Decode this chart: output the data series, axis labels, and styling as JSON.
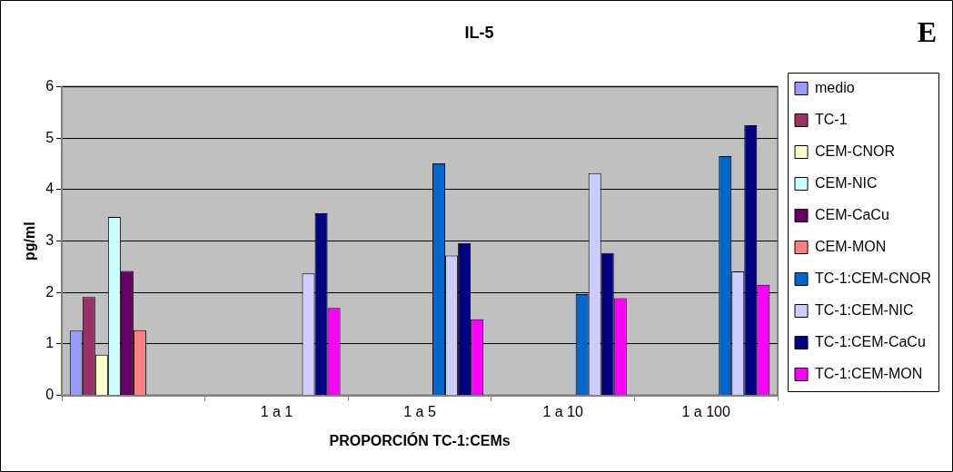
{
  "chart_data": {
    "type": "bar",
    "title": "IL-5",
    "xlabel": "PROPORCIÓN TC-1:CEMs",
    "ylabel": "pg/ml",
    "annotations": [
      "E"
    ],
    "categories": [
      null,
      "1 a 1",
      "1 a 5",
      "1 a 10",
      "1 a 100"
    ],
    "series": [
      {
        "name": "medio",
        "color": "#9999ff",
        "values": [
          1.26,
          null,
          null,
          null,
          null
        ]
      },
      {
        "name": "TC-1",
        "color": "#993366",
        "values": [
          1.91,
          null,
          null,
          null,
          null
        ]
      },
      {
        "name": "CEM-CNOR",
        "color": "#ffffcc",
        "values": [
          0.79,
          null,
          null,
          null,
          null
        ]
      },
      {
        "name": "CEM-NIC",
        "color": "#ccffff",
        "values": [
          3.47,
          null,
          null,
          null,
          null
        ]
      },
      {
        "name": "CEM-CaCu",
        "color": "#660066",
        "values": [
          2.42,
          null,
          null,
          null,
          null
        ]
      },
      {
        "name": "CEM-MON",
        "color": "#ff8080",
        "values": [
          1.27,
          null,
          null,
          null,
          null
        ]
      },
      {
        "name": "TC-1:CEM-CNOR",
        "color": "#0066cc",
        "values": [
          null,
          null,
          4.51,
          1.97,
          4.65
        ]
      },
      {
        "name": "TC-1:CEM-NIC",
        "color": "#ccccff",
        "values": [
          null,
          2.37,
          2.72,
          4.32,
          2.41
        ]
      },
      {
        "name": "TC-1:CEM-CaCu",
        "color": "#000080",
        "values": [
          null,
          3.54,
          2.96,
          2.77,
          5.25
        ]
      },
      {
        "name": "TC-1:CEM-MON",
        "color": "#ff00ff",
        "values": [
          null,
          1.7,
          1.48,
          1.89,
          2.15
        ]
      }
    ],
    "ylim": [
      0,
      6
    ],
    "yticks": [
      0,
      1,
      2,
      3,
      4,
      5,
      6
    ],
    "grid": "y",
    "legend": "right"
  }
}
